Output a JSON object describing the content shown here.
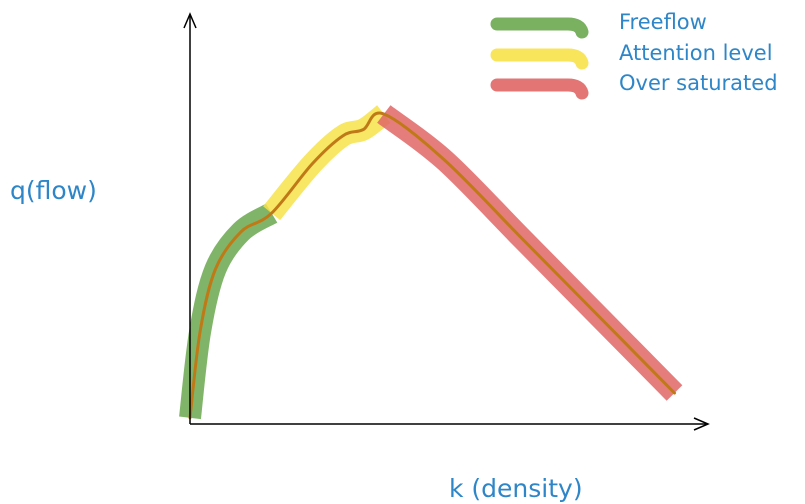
{
  "chart_data": {
    "type": "line",
    "title": "",
    "xlabel": "k (density)",
    "ylabel": "q(flow)",
    "grid": false,
    "legend_placement": "top-right",
    "series": [
      {
        "name": "Freeflow",
        "color": "#6aa84f",
        "x": [
          0.0,
          0.02,
          0.05,
          0.1,
          0.16
        ],
        "y": [
          0.02,
          0.3,
          0.5,
          0.62,
          0.68
        ]
      },
      {
        "name": "Attention level",
        "color": "#f7e24a",
        "x": [
          0.16,
          0.24,
          0.3,
          0.34,
          0.38
        ],
        "y": [
          0.68,
          0.84,
          0.93,
          0.95,
          1.0
        ]
      },
      {
        "name": "Over saturated",
        "color": "#e06666",
        "x": [
          0.38,
          0.5,
          0.65,
          0.8,
          0.95
        ],
        "y": [
          1.0,
          0.85,
          0.6,
          0.35,
          0.1
        ]
      }
    ],
    "curve_color": "#bf7a17"
  },
  "icons": {
    "y_axis_arrow": "arrow-up-icon",
    "x_axis_arrow": "arrow-right-icon"
  }
}
